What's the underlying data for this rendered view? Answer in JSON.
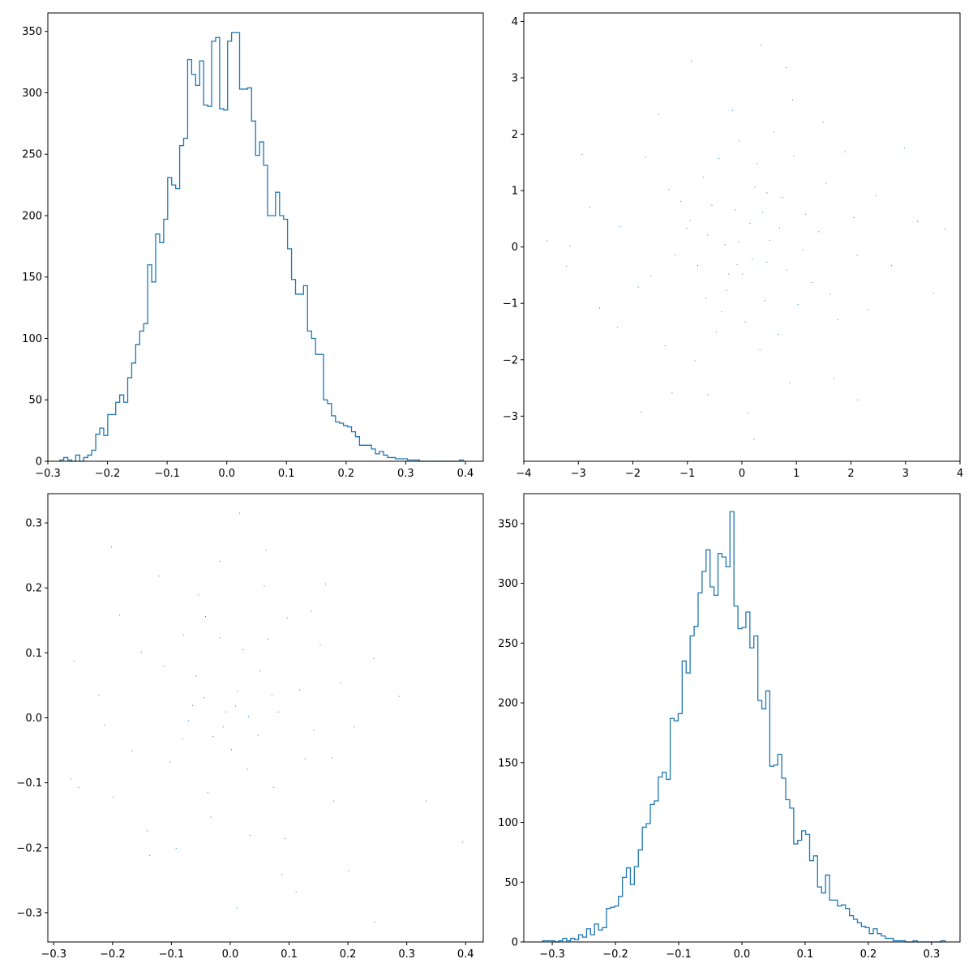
{
  "chart_data": [
    {
      "type": "histogram",
      "histtype": "step",
      "panel": "top-left",
      "color": "#1f77b4",
      "title": "",
      "xlabel": "",
      "ylabel": "",
      "xlim": [
        -0.3,
        0.43
      ],
      "ylim": [
        0,
        365
      ],
      "x_ticks": [
        -0.3,
        -0.2,
        -0.1,
        0.0,
        0.1,
        0.2,
        0.3,
        0.4
      ],
      "x_tick_labels": [
        "−0.3",
        "−0.2",
        "−0.1",
        "0.0",
        "0.1",
        "0.2",
        "0.3",
        "0.4"
      ],
      "y_ticks": [
        0,
        50,
        100,
        150,
        200,
        250,
        300,
        350
      ],
      "y_tick_labels": [
        "0",
        "50",
        "100",
        "150",
        "200",
        "250",
        "300",
        "350"
      ],
      "x_start": -0.28,
      "bin_width": 0.0067,
      "counts": [
        1,
        3,
        1,
        0,
        5,
        0,
        3,
        5,
        9,
        22,
        27,
        21,
        38,
        38,
        48,
        54,
        48,
        68,
        80,
        95,
        106,
        112,
        160,
        146,
        185,
        178,
        197,
        231,
        225,
        222,
        257,
        263,
        327,
        315,
        306,
        326,
        290,
        289,
        342,
        345,
        287,
        286,
        342,
        349,
        349,
        303,
        303,
        304,
        277,
        249,
        260,
        241,
        200,
        200,
        219,
        200,
        197,
        173,
        148,
        136,
        136,
        143,
        106,
        100,
        87,
        87,
        50,
        47,
        37,
        32,
        31,
        29,
        28,
        24,
        20,
        13,
        13,
        13,
        10,
        6,
        8,
        5,
        3,
        3,
        2,
        2,
        2,
        1,
        1,
        1,
        0,
        0,
        0,
        0,
        0,
        0,
        0,
        0,
        0,
        0,
        1
      ]
    },
    {
      "type": "scatter",
      "panel": "top-right",
      "color": "#1f77b4",
      "title": "",
      "xlabel": "",
      "ylabel": "",
      "xlim": [
        -4,
        4
      ],
      "ylim": [
        -3.8,
        4.15
      ],
      "x_ticks": [
        -4,
        -3,
        -2,
        -1,
        0,
        1,
        2,
        3,
        4
      ],
      "x_tick_labels": [
        "−4",
        "−3",
        "−2",
        "−1",
        "0",
        "1",
        "2",
        "3",
        "4"
      ],
      "y_ticks": [
        -3,
        -2,
        -1,
        0,
        1,
        2,
        3,
        4
      ],
      "y_tick_labels": [
        "−3",
        "−2",
        "−1",
        "0",
        "1",
        "2",
        "3",
        "4"
      ],
      "points": [
        [
          0.15,
          0.42
        ],
        [
          -0.63,
          0.21
        ],
        [
          0.46,
          -0.27
        ],
        [
          0.24,
          1.06
        ],
        [
          -0.37,
          -1.15
        ],
        [
          0.69,
          0.34
        ],
        [
          -1.12,
          0.81
        ],
        [
          0.01,
          -0.48
        ],
        [
          1.28,
          -0.63
        ],
        [
          -0.06,
          0.09
        ],
        [
          -0.81,
          -0.33
        ],
        [
          0.33,
          -1.82
        ],
        [
          1.54,
          1.13
        ],
        [
          -1.67,
          -0.52
        ],
        [
          0.59,
          2.04
        ],
        [
          -0.42,
          1.57
        ],
        [
          2.11,
          -0.15
        ],
        [
          -2.23,
          0.36
        ],
        [
          0.88,
          -2.41
        ],
        [
          1.76,
          -1.29
        ],
        [
          -1.41,
          -1.75
        ],
        [
          -0.17,
          2.42
        ],
        [
          2.46,
          0.91
        ],
        [
          -2.61,
          -1.08
        ],
        [
          0.12,
          -2.94
        ],
        [
          3.22,
          0.45
        ],
        [
          -3.15,
          0.02
        ],
        [
          0.35,
          3.58
        ],
        [
          1.12,
          -0.05
        ],
        [
          -0.95,
          0.47
        ],
        [
          0.74,
          0.88
        ],
        [
          -0.28,
          -0.77
        ],
        [
          0.51,
          0.12
        ],
        [
          -0.12,
          0.66
        ],
        [
          1.03,
          -1.02
        ],
        [
          -0.71,
          1.24
        ],
        [
          0.06,
          -1.33
        ],
        [
          1.41,
          0.27
        ],
        [
          -1.22,
          -0.14
        ],
        [
          0.27,
          1.48
        ],
        [
          -0.47,
          -1.51
        ],
        [
          0.95,
          1.61
        ],
        [
          -1.34,
          1.02
        ],
        [
          1.62,
          -0.84
        ],
        [
          -0.86,
          -2.02
        ],
        [
          2.05,
          0.52
        ],
        [
          -1.9,
          -0.71
        ],
        [
          0.42,
          -0.95
        ],
        [
          -0.05,
          1.88
        ],
        [
          0.67,
          -1.55
        ],
        [
          1.89,
          1.69
        ],
        [
          -1.77,
          1.59
        ],
        [
          2.32,
          -1.11
        ],
        [
          -2.28,
          -1.42
        ],
        [
          0.93,
          2.61
        ],
        [
          -0.62,
          -2.62
        ],
        [
          2.74,
          -0.33
        ],
        [
          -2.79,
          0.71
        ],
        [
          1.49,
          2.21
        ],
        [
          -1.53,
          2.35
        ],
        [
          1.69,
          -2.33
        ],
        [
          -1.28,
          -2.59
        ],
        [
          3.51,
          -0.82
        ],
        [
          -3.22,
          -0.34
        ],
        [
          0.81,
          3.18
        ],
        [
          -0.93,
          3.3
        ],
        [
          2.98,
          1.75
        ],
        [
          -2.93,
          1.64
        ],
        [
          2.12,
          -2.71
        ],
        [
          -1.85,
          -2.93
        ],
        [
          3.72,
          0.32
        ],
        [
          -3.57,
          0.11
        ],
        [
          0.22,
          -3.41
        ],
        [
          -0.31,
          0.04
        ],
        [
          0.19,
          -0.22
        ],
        [
          -0.09,
          -0.31
        ],
        [
          0.38,
          0.61
        ],
        [
          -0.55,
          0.74
        ],
        [
          0.82,
          -0.41
        ],
        [
          -0.24,
          -0.48
        ],
        [
          0.46,
          0.96
        ],
        [
          -0.66,
          -0.91
        ],
        [
          1.17,
          0.58
        ],
        [
          -1.01,
          0.33
        ]
      ]
    },
    {
      "type": "scatter",
      "panel": "bottom-left",
      "color": "#1f77b4",
      "title": "",
      "xlabel": "",
      "ylabel": "",
      "xlim": [
        -0.31,
        0.43
      ],
      "ylim": [
        -0.345,
        0.345
      ],
      "x_ticks": [
        -0.3,
        -0.2,
        -0.1,
        0.0,
        0.1,
        0.2,
        0.3,
        0.4
      ],
      "x_tick_labels": [
        "−0.3",
        "−0.2",
        "−0.1",
        "0.0",
        "0.1",
        "0.2",
        "0.3",
        "0.4"
      ],
      "y_ticks": [
        -0.3,
        -0.2,
        -0.1,
        0.0,
        0.1,
        0.2,
        0.3
      ],
      "y_tick_labels": [
        "−0.3",
        "−0.2",
        "−0.1",
        "0.0",
        "0.1",
        "0.2",
        "0.3"
      ],
      "points": [
        [
          0.012,
          0.041
        ],
        [
          -0.064,
          0.019
        ],
        [
          0.047,
          -0.027
        ],
        [
          0.022,
          0.105
        ],
        [
          -0.038,
          -0.115
        ],
        [
          0.071,
          0.034
        ],
        [
          -0.112,
          0.079
        ],
        [
          0.002,
          -0.049
        ],
        [
          0.127,
          -0.063
        ],
        [
          -0.007,
          0.009
        ],
        [
          -0.081,
          -0.032
        ],
        [
          0.034,
          -0.181
        ],
        [
          0.153,
          0.112
        ],
        [
          -0.167,
          -0.051
        ],
        [
          0.058,
          0.203
        ],
        [
          -0.042,
          0.156
        ],
        [
          0.211,
          -0.014
        ],
        [
          -0.223,
          0.035
        ],
        [
          0.088,
          -0.241
        ],
        [
          0.176,
          -0.128
        ],
        [
          -0.141,
          -0.174
        ],
        [
          -0.018,
          0.241
        ],
        [
          0.244,
          0.091
        ],
        [
          -0.258,
          -0.107
        ],
        [
          0.011,
          -0.293
        ],
        [
          0.333,
          -0.128
        ],
        [
          -0.271,
          -0.094
        ],
        [
          0.016,
          0.315
        ],
        [
          0.395,
          -0.191
        ],
        [
          0.245,
          -0.314
        ],
        [
          -0.202,
          0.263
        ],
        [
          0.112,
          -0.268
        ],
        [
          -0.265,
          0.087
        ],
        [
          0.287,
          0.033
        ],
        [
          -0.092,
          -0.201
        ],
        [
          0.162,
          0.206
        ],
        [
          -0.188,
          0.158
        ],
        [
          0.201,
          -0.235
        ],
        [
          0.061,
          0.258
        ],
        [
          -0.121,
          0.218
        ],
        [
          0.097,
          0.154
        ],
        [
          -0.151,
          0.101
        ],
        [
          0.118,
          0.043
        ],
        [
          -0.033,
          -0.153
        ],
        [
          0.074,
          -0.107
        ],
        [
          -0.058,
          0.064
        ],
        [
          0.029,
          -0.079
        ],
        [
          -0.017,
          0.123
        ],
        [
          0.142,
          -0.019
        ],
        [
          -0.102,
          -0.068
        ],
        [
          0.051,
          0.072
        ],
        [
          -0.079,
          0.127
        ],
        [
          0.188,
          0.054
        ],
        [
          -0.199,
          -0.122
        ],
        [
          0.093,
          -0.186
        ],
        [
          -0.054,
          0.189
        ],
        [
          0.173,
          -0.062
        ],
        [
          -0.214,
          -0.011
        ],
        [
          0.138,
          0.164
        ],
        [
          -0.137,
          -0.212
        ],
        [
          0.064,
          0.121
        ],
        [
          -0.029,
          -0.029
        ],
        [
          0.009,
          0.018
        ],
        [
          -0.012,
          -0.014
        ],
        [
          0.031,
          0.002
        ],
        [
          -0.045,
          0.031
        ],
        [
          0.082,
          0.009
        ],
        [
          -0.071,
          -0.004
        ]
      ]
    },
    {
      "type": "histogram",
      "histtype": "step",
      "panel": "bottom-right",
      "color": "#1f77b4",
      "title": "",
      "xlabel": "",
      "ylabel": "",
      "xlim": [
        -0.345,
        0.345
      ],
      "ylim": [
        0,
        375
      ],
      "x_ticks": [
        -0.3,
        -0.2,
        -0.1,
        0.0,
        0.1,
        0.2,
        0.3
      ],
      "x_tick_labels": [
        "−0.3",
        "−0.2",
        "−0.1",
        "0.0",
        "0.1",
        "0.2",
        "0.3"
      ],
      "y_ticks": [
        0,
        50,
        100,
        150,
        200,
        250,
        300,
        350
      ],
      "y_tick_labels": [
        "0",
        "50",
        "100",
        "150",
        "200",
        "250",
        "300",
        "350"
      ],
      "x_start": -0.315,
      "bin_width": 0.0063,
      "counts": [
        1,
        1,
        1,
        0,
        1,
        3,
        1,
        3,
        2,
        6,
        4,
        11,
        6,
        15,
        10,
        12,
        28,
        29,
        30,
        38,
        54,
        62,
        48,
        63,
        77,
        96,
        99,
        115,
        118,
        138,
        142,
        136,
        187,
        185,
        191,
        235,
        225,
        256,
        264,
        292,
        310,
        328,
        297,
        290,
        325,
        322,
        314,
        360,
        281,
        262,
        263,
        276,
        246,
        256,
        202,
        195,
        210,
        147,
        148,
        157,
        137,
        119,
        112,
        82,
        85,
        93,
        90,
        68,
        72,
        46,
        41,
        56,
        35,
        35,
        30,
        31,
        28,
        22,
        19,
        16,
        13,
        12,
        7,
        11,
        7,
        5,
        3,
        3,
        1,
        1,
        1,
        0,
        0,
        1,
        0,
        0,
        0,
        0,
        0,
        0,
        1
      ]
    }
  ]
}
